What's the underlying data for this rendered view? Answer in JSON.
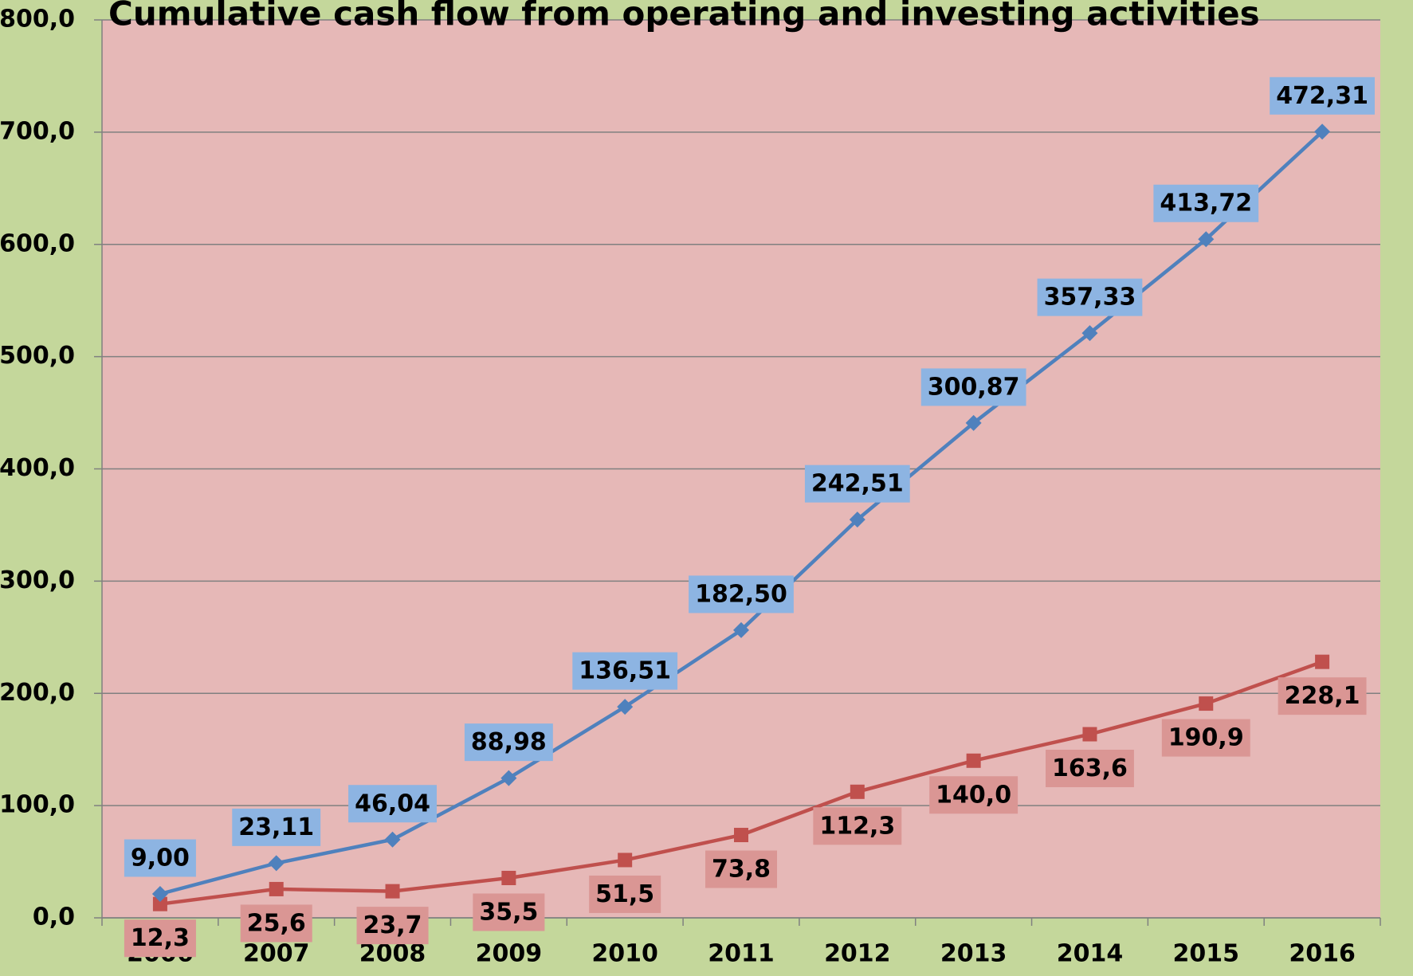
{
  "chart_data": {
    "type": "line",
    "stacked": true,
    "title": "Cumulative cash flow from operating and investing activities",
    "categories": [
      "2006",
      "2007",
      "2008",
      "2009",
      "2010",
      "2011",
      "2012",
      "2013",
      "2014",
      "2015",
      "2016"
    ],
    "series": [
      {
        "color": "#c0504d",
        "marker": "square",
        "label_color": "#da9694",
        "values": [
          12.3,
          25.6,
          23.7,
          35.5,
          51.5,
          73.8,
          112.3,
          140.0,
          163.6,
          190.9,
          228.1
        ],
        "value_labels": [
          "12,3",
          "25,6",
          "23,7",
          "35,5",
          "51,5",
          "73,8",
          "112,3",
          "140,0",
          "163,6",
          "190,9",
          "228,1"
        ]
      },
      {
        "color": "#4f81bd",
        "marker": "diamond",
        "label_color": "#8db4e2",
        "values": [
          9.0,
          23.11,
          46.04,
          88.98,
          136.51,
          182.5,
          242.51,
          300.87,
          357.33,
          413.72,
          472.31
        ],
        "value_labels": [
          "9,00",
          "23,11",
          "46,04",
          "88,98",
          "136,51",
          "182,50",
          "242,51",
          "300,87",
          "357,33",
          "413,72",
          "472,31"
        ]
      }
    ],
    "ylim": [
      0,
      800
    ],
    "yticks": [
      {
        "value": 0,
        "label": "0,0"
      },
      {
        "value": 100,
        "label": "100,0"
      },
      {
        "value": 200,
        "label": "200,0"
      },
      {
        "value": 300,
        "label": "300,0"
      },
      {
        "value": 400,
        "label": "400,0"
      },
      {
        "value": 500,
        "label": "500,0"
      },
      {
        "value": 600,
        "label": "600,0"
      },
      {
        "value": 700,
        "label": "700,0"
      },
      {
        "value": 800,
        "label": "800,0"
      }
    ],
    "grid": true,
    "background": "#c4d79b",
    "plot_background": "#e6b8b7"
  }
}
